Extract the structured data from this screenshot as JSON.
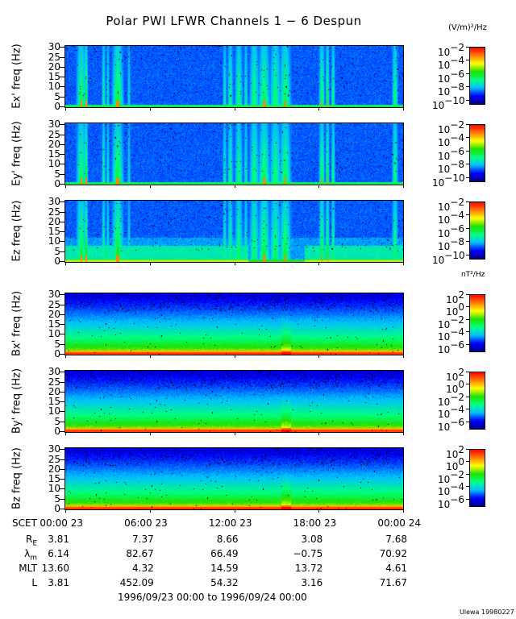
{
  "title": "Polar PWI LFWR Channels 1 − 6 Despun",
  "chart_data": {
    "type": "heatmap",
    "title": "Polar PWI LFWR Channels 1 − 6 Despun",
    "x_range": [
      "1996/09/23 00:00",
      "1996/09/24 00:00"
    ],
    "x_tick_labels": [
      "00:00 23",
      "06:00 23",
      "12:00 23",
      "18:00 23",
      "00:00 24"
    ],
    "y_range_hz": [
      0,
      30
    ],
    "y_tick_labels": [
      "0",
      "5",
      "10",
      "15",
      "20",
      "25",
      "30"
    ],
    "panels": [
      {
        "ylabel": "Ex' freq (Hz)",
        "colorbar": "electric"
      },
      {
        "ylabel": "Ey' freq (Hz)",
        "colorbar": "electric"
      },
      {
        "ylabel": "Ez freq (Hz)",
        "colorbar": "electric"
      },
      {
        "ylabel": "Bx' freq (Hz)",
        "colorbar": "magnetic"
      },
      {
        "ylabel": "By' freq (Hz)",
        "colorbar": "magnetic"
      },
      {
        "ylabel": "Bz freq (Hz)",
        "colorbar": "magnetic"
      }
    ],
    "colorbars": {
      "electric": {
        "unit": "(V/m)²/Hz",
        "log_range": [
          -10.5,
          -2
        ],
        "ticks": [
          "10",
          "10",
          "10",
          "10",
          "10"
        ],
        "exponents": [
          "−2",
          "−4",
          "−6",
          "−8",
          "−10"
        ]
      },
      "magnetic": {
        "unit": "nT²/Hz",
        "log_range": [
          -7,
          2
        ],
        "ticks": [
          "10",
          "10",
          "10",
          "10",
          "10"
        ],
        "exponents": [
          "2",
          "0",
          "−2",
          "−4",
          "−6"
        ]
      }
    },
    "colormap": [
      "#000080",
      "#0000ff",
      "#00c0ff",
      "#00ff80",
      "#20e000",
      "#ffff00",
      "#ff8000",
      "#ff0000"
    ]
  },
  "ephemeris": {
    "scet_label": "SCET",
    "rows": [
      {
        "label": "R",
        "sub": "E",
        "values": [
          "3.81",
          "7.37",
          "8.66",
          "3.08",
          "7.68"
        ]
      },
      {
        "label": "λ",
        "sub": "m",
        "values": [
          "6.14",
          "82.67",
          "66.49",
          "−0.75",
          "70.92"
        ]
      },
      {
        "label": "MLT",
        "sub": "",
        "values": [
          "13.60",
          "4.32",
          "14.59",
          "13.72",
          "4.61"
        ]
      },
      {
        "label": "L",
        "sub": "",
        "values": [
          "3.81",
          "452.09",
          "54.32",
          "3.16",
          "71.67"
        ]
      }
    ]
  },
  "date_range": "1996/09/23 00:00 to 1996/09/24 00:00",
  "credit": "Ulewa 19980227"
}
